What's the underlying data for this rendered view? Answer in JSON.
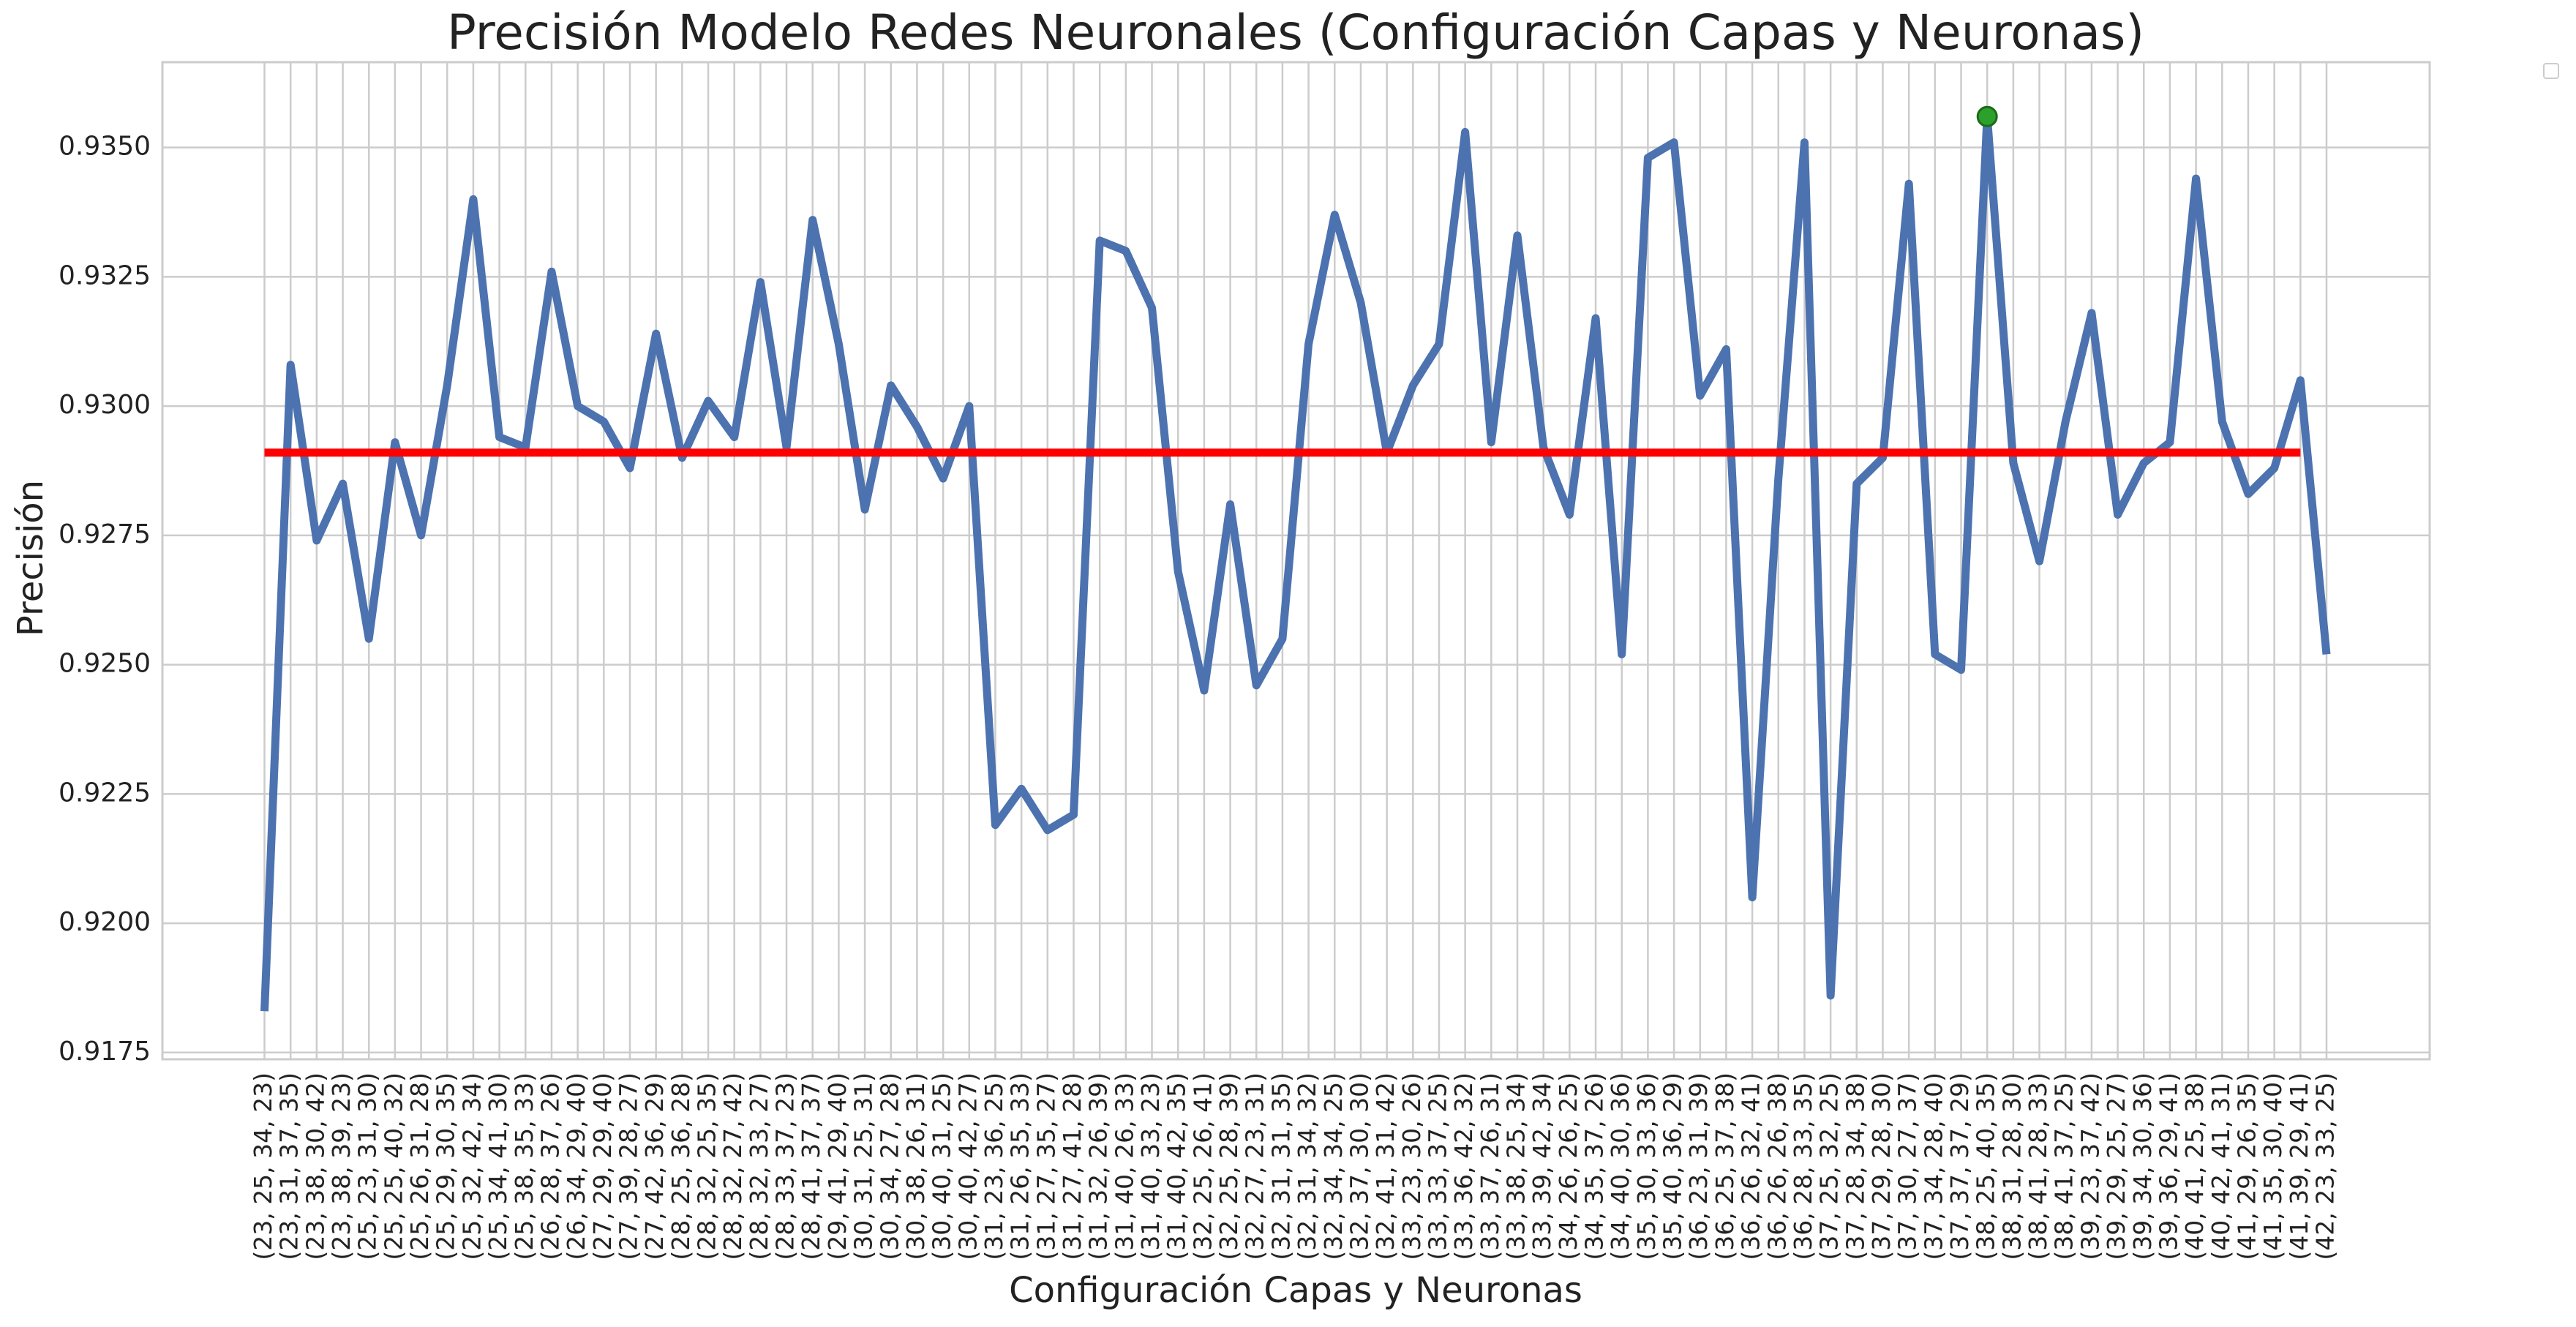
{
  "chart_data": {
    "type": "line",
    "title": "Precisión Modelo Redes Neuronales (Configuración Capas y Neuronas)",
    "x_label": "Configuración Capas y Neuronas",
    "y_label": "Precisión",
    "categories": [
      "(23, 25, 34, 23)",
      "(23, 31, 37, 35)",
      "(23, 38, 30, 42)",
      "(23, 38, 39, 23)",
      "(25, 23, 31, 30)",
      "(25, 25, 40, 32)",
      "(25, 26, 31, 28)",
      "(25, 29, 30, 35)",
      "(25, 32, 42, 34)",
      "(25, 34, 41, 30)",
      "(25, 38, 35, 33)",
      "(26, 28, 37, 26)",
      "(26, 34, 29, 40)",
      "(27, 29, 29, 40)",
      "(27, 39, 28, 27)",
      "(27, 42, 36, 29)",
      "(28, 25, 36, 28)",
      "(28, 32, 25, 35)",
      "(28, 32, 27, 42)",
      "(28, 32, 33, 27)",
      "(28, 33, 37, 23)",
      "(28, 41, 37, 37)",
      "(29, 41, 29, 40)",
      "(30, 31, 25, 31)",
      "(30, 34, 27, 28)",
      "(30, 38, 26, 31)",
      "(30, 40, 31, 25)",
      "(30, 40, 42, 27)",
      "(31, 23, 36, 25)",
      "(31, 26, 35, 33)",
      "(31, 27, 35, 27)",
      "(31, 27, 41, 28)",
      "(31, 32, 26, 39)",
      "(31, 40, 26, 33)",
      "(31, 40, 33, 23)",
      "(31, 40, 42, 35)",
      "(32, 25, 26, 41)",
      "(32, 25, 28, 39)",
      "(32, 27, 23, 31)",
      "(32, 31, 31, 35)",
      "(32, 31, 34, 32)",
      "(32, 34, 34, 25)",
      "(32, 37, 30, 30)",
      "(32, 41, 31, 42)",
      "(33, 23, 30, 26)",
      "(33, 33, 37, 25)",
      "(33, 36, 42, 32)",
      "(33, 37, 26, 31)",
      "(33, 38, 25, 34)",
      "(33, 39, 42, 34)",
      "(34, 26, 26, 25)",
      "(34, 35, 37, 26)",
      "(34, 40, 30, 36)",
      "(35, 30, 33, 36)",
      "(35, 40, 36, 29)",
      "(36, 23, 31, 39)",
      "(36, 25, 37, 38)",
      "(36, 26, 32, 41)",
      "(36, 26, 26, 38)",
      "(36, 28, 33, 35)",
      "(37, 25, 32, 25)",
      "(37, 28, 34, 38)",
      "(37, 29, 28, 30)",
      "(37, 30, 27, 37)",
      "(37, 34, 28, 40)",
      "(37, 37, 37, 29)",
      "(38, 25, 40, 35)",
      "(38, 31, 28, 30)",
      "(38, 41, 28, 33)",
      "(38, 41, 37, 25)",
      "(39, 23, 37, 42)",
      "(39, 29, 25, 27)",
      "(39, 34, 30, 36)",
      "(39, 36, 29, 41)",
      "(40, 41, 25, 38)",
      "(40, 42, 41, 31)",
      "(41, 29, 26, 35)",
      "(41, 35, 30, 40)",
      "(41, 39, 29, 41)",
      "(42, 23, 33, 25)"
    ],
    "series": [
      {
        "type": "line",
        "color": "#4c72b0",
        "values": [
          0.9183,
          0.9308,
          0.9274,
          0.9285,
          0.9255,
          0.9293,
          0.9275,
          0.9304,
          0.934,
          0.9294,
          0.9292,
          0.9326,
          0.93,
          0.9297,
          0.9288,
          0.9314,
          0.929,
          0.9301,
          0.9294,
          0.9324,
          0.9292,
          0.9336,
          0.9312,
          0.928,
          0.9304,
          0.9296,
          0.9286,
          0.93,
          0.9219,
          0.9226,
          0.9218,
          0.9221,
          0.9332,
          0.933,
          0.9319,
          0.9268,
          0.9245,
          0.9281,
          0.9246,
          0.9255,
          0.9312,
          0.9337,
          0.932,
          0.9291,
          0.9304,
          0.9312,
          0.9353,
          0.9293,
          0.9333,
          0.9292,
          0.9279,
          0.9317,
          0.9252,
          0.9348,
          0.9351,
          0.9302,
          0.9311,
          0.9205,
          0.9286,
          0.9351,
          0.9186,
          0.9285,
          0.929,
          0.9343,
          0.9252,
          0.9249,
          0.9356,
          0.9289,
          0.927,
          0.9297,
          0.9318,
          0.9279,
          0.9289,
          0.9293,
          0.9344,
          0.9297,
          0.9283,
          0.9288,
          0.9305,
          0.9252
        ]
      },
      {
        "type": "line",
        "color": "#ff0000",
        "values": [
          0.9291,
          0.9291,
          0.9291,
          0.9291,
          0.9291,
          0.9291,
          0.9291,
          0.9291,
          0.9291,
          0.9291,
          0.9291,
          0.9291,
          0.9291,
          0.9291,
          0.9291,
          0.9291,
          0.9291,
          0.9291,
          0.9291,
          0.9291,
          0.9291,
          0.9291,
          0.9291,
          0.9291,
          0.9291,
          0.9291,
          0.9291,
          0.9291,
          0.9291,
          0.9291,
          0.9291,
          0.9291,
          0.9291,
          0.9291,
          0.9291,
          0.9291,
          0.9291,
          0.9291,
          0.9291,
          0.9291,
          0.9291,
          0.9291,
          0.9291,
          0.9291,
          0.9291,
          0.9291,
          0.9291,
          0.9291,
          0.9291,
          0.9291,
          0.9291,
          0.9291,
          0.9291,
          0.9291,
          0.9291,
          0.9291,
          0.9291,
          0.9291,
          0.9291,
          0.9291,
          0.9291,
          0.9291,
          0.9291,
          0.9291,
          0.9291,
          0.9291,
          0.9291,
          0.9291,
          0.9291,
          0.9291,
          0.9291,
          0.9291,
          0.9291,
          0.9291,
          0.9291,
          0.9291,
          0.9291,
          0.9291,
          0.9291,
          null
        ]
      },
      {
        "type": "scatter",
        "color": "#2ca02c",
        "values": [
          null,
          null,
          null,
          null,
          null,
          null,
          null,
          null,
          null,
          null,
          null,
          null,
          null,
          null,
          null,
          null,
          null,
          null,
          null,
          null,
          null,
          null,
          null,
          null,
          null,
          null,
          null,
          null,
          null,
          null,
          null,
          null,
          null,
          null,
          null,
          null,
          null,
          null,
          null,
          null,
          null,
          null,
          null,
          null,
          null,
          null,
          null,
          null,
          null,
          null,
          null,
          null,
          null,
          null,
          null,
          null,
          null,
          null,
          null,
          null,
          null,
          null,
          null,
          null,
          null,
          null,
          0.9356,
          null,
          null,
          null,
          null,
          null,
          null,
          null,
          null,
          null,
          null,
          null,
          null,
          null
        ]
      }
    ],
    "ylim": [
      0.91737,
      0.93665
    ],
    "yticks": [
      0.9175,
      {
        "value": 0.92,
        "label": "0.9200"
      },
      0.9225,
      {
        "value": 0.925,
        "label": "0.9250"
      },
      0.9275,
      {
        "value": 0.93,
        "label": "0.9300"
      },
      0.9325,
      {
        "value": 0.935,
        "label": "0.9350"
      }
    ],
    "grid": true
  }
}
